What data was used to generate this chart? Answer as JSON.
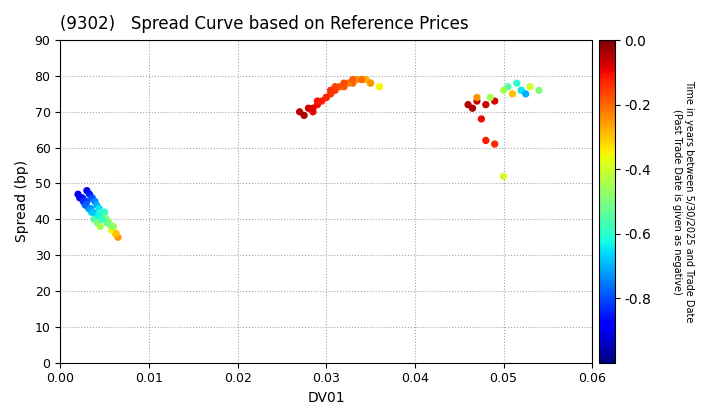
{
  "title": "(9302)   Spread Curve based on Reference Prices",
  "xlabel": "DV01",
  "ylabel": "Spread (bp)",
  "xlim": [
    0.0,
    0.06
  ],
  "ylim": [
    0,
    90
  ],
  "xticks": [
    0.0,
    0.01,
    0.02,
    0.03,
    0.04,
    0.05,
    0.06
  ],
  "yticks": [
    0,
    10,
    20,
    30,
    40,
    50,
    60,
    70,
    80,
    90
  ],
  "colorbar_label": "Time in years between 5/30/2025 and Trade Date\n(Past Trade Date is given as negative)",
  "cmap": "jet",
  "vmin": -1.0,
  "vmax": 0.0,
  "cluster1": {
    "dv01": [
      0.002,
      0.0025,
      0.003,
      0.0028,
      0.0032,
      0.0035,
      0.004,
      0.0038,
      0.0042,
      0.0045,
      0.005,
      0.0048,
      0.0052,
      0.0055,
      0.006,
      0.0058,
      0.0062,
      0.0065,
      0.003,
      0.0033,
      0.0036,
      0.0039,
      0.0041,
      0.0044,
      0.0046,
      0.0049,
      0.0051,
      0.0054,
      0.0057,
      0.006,
      0.0063,
      0.0022,
      0.0026,
      0.0029,
      0.0034,
      0.0037,
      0.0043,
      0.0047,
      0.0053,
      0.0059
    ],
    "spread": [
      47,
      46,
      45,
      44,
      43,
      42,
      41,
      40,
      39,
      38,
      42,
      41,
      40,
      39,
      38,
      37,
      36,
      35,
      48,
      47,
      46,
      45,
      44,
      43,
      42,
      41,
      40,
      39,
      38,
      37,
      36,
      46,
      45,
      44,
      43,
      42,
      41,
      40,
      39,
      38
    ],
    "time": [
      -0.9,
      -0.85,
      -0.8,
      -0.75,
      -0.7,
      -0.65,
      -0.6,
      -0.55,
      -0.5,
      -0.45,
      -0.6,
      -0.55,
      -0.5,
      -0.45,
      -0.4,
      -0.35,
      -0.3,
      -0.25,
      -0.9,
      -0.85,
      -0.8,
      -0.75,
      -0.7,
      -0.65,
      -0.6,
      -0.55,
      -0.5,
      -0.45,
      -0.4,
      -0.35,
      -0.3,
      -0.88,
      -0.83,
      -0.78,
      -0.73,
      -0.68,
      -0.63,
      -0.58,
      -0.53,
      -0.48
    ]
  },
  "cluster2": {
    "dv01": [
      0.027,
      0.028,
      0.029,
      0.03,
      0.031,
      0.032,
      0.033,
      0.034,
      0.035,
      0.036,
      0.0275,
      0.0285,
      0.0295,
      0.0305,
      0.0315,
      0.0325,
      0.0335,
      0.0345,
      0.029,
      0.0305,
      0.032,
      0.033,
      0.034,
      0.035,
      0.0285,
      0.03,
      0.031
    ],
    "spread": [
      70,
      71,
      72,
      74,
      76,
      77,
      78,
      79,
      78,
      77,
      69,
      71,
      73,
      75,
      77,
      78,
      79,
      79,
      73,
      76,
      78,
      79,
      79,
      78,
      70,
      74,
      77
    ],
    "time": [
      -0.05,
      -0.06,
      -0.1,
      -0.12,
      -0.15,
      -0.18,
      -0.2,
      -0.22,
      -0.3,
      -0.35,
      -0.04,
      -0.08,
      -0.12,
      -0.15,
      -0.18,
      -0.22,
      -0.25,
      -0.28,
      -0.11,
      -0.14,
      -0.17,
      -0.19,
      -0.21,
      -0.25,
      -0.09,
      -0.13,
      -0.16
    ]
  },
  "cluster3": {
    "dv01": [
      0.046,
      0.047,
      0.0465,
      0.048,
      0.049,
      0.0475,
      0.048,
      0.049,
      0.05,
      0.051,
      0.052,
      0.053,
      0.054,
      0.0505,
      0.0515,
      0.052,
      0.0525,
      0.047,
      0.0485,
      0.05
    ],
    "spread": [
      72,
      73,
      71,
      72,
      73,
      68,
      62,
      61,
      52,
      75,
      76,
      77,
      76,
      77,
      78,
      76,
      75,
      74,
      74,
      76
    ],
    "time": [
      -0.05,
      -0.06,
      -0.04,
      -0.07,
      -0.08,
      -0.1,
      -0.12,
      -0.13,
      -0.4,
      -0.3,
      -0.35,
      -0.4,
      -0.5,
      -0.55,
      -0.6,
      -0.65,
      -0.7,
      -0.25,
      -0.45,
      -0.45
    ]
  }
}
